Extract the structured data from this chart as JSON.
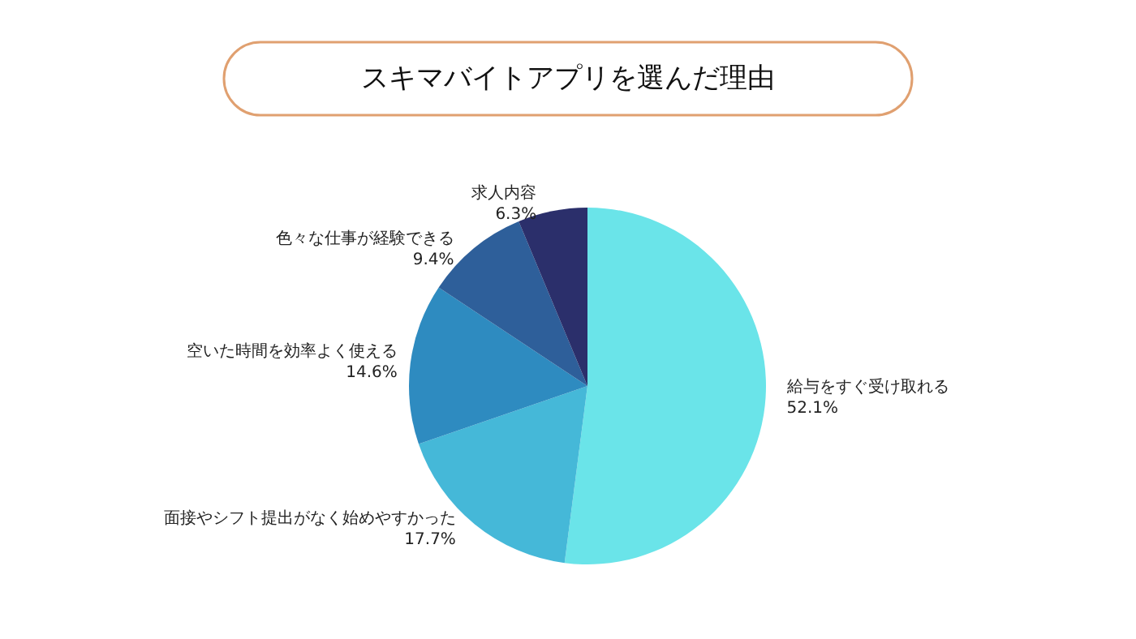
{
  "chart_data": {
    "type": "pie",
    "title": "スキマバイトアプリを選んだ理由",
    "categories": [
      "給与をすぐ受け取れる",
      "面接やシフト提出がなく始めやすかった",
      "空いた時間を効率よく使える",
      "色々な仕事が経験できる",
      "求人内容"
    ],
    "values": [
      52.1,
      17.7,
      14.6,
      9.4,
      6.3
    ],
    "value_labels": [
      "52.1%",
      "17.7%",
      "14.6%",
      "9.4%",
      "6.3%"
    ],
    "colors": [
      "#6ae4e9",
      "#45b8d8",
      "#2e8bc0",
      "#2e5f9a",
      "#2b2f6b"
    ],
    "legend": false
  }
}
